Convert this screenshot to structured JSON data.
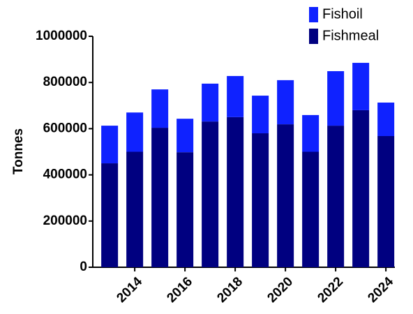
{
  "chart_data": {
    "type": "stacked_bar",
    "x": [
      2013,
      2014,
      2015,
      2016,
      2017,
      2018,
      2019,
      2020,
      2021,
      2022,
      2023,
      2024
    ],
    "xlim": [
      2012.33,
      2024.33
    ],
    "xticks": [
      2014,
      2016,
      2018,
      2020,
      2022,
      2024
    ],
    "ylabel": "Tonnes",
    "ylim": [
      0,
      1000000
    ],
    "yticks": [
      0,
      200000,
      400000,
      600000,
      800000,
      1000000
    ],
    "grid": false,
    "legend": "top-right",
    "series": [
      {
        "name": "Fishmeal",
        "color": "#000080",
        "values": [
          450000,
          500000,
          604000,
          498000,
          631000,
          650000,
          580000,
          619000,
          500000,
          613000,
          680000,
          568000
        ]
      },
      {
        "name": "Fishoil",
        "color": "#0f22ff",
        "values": [
          163000,
          170000,
          166000,
          145000,
          164000,
          178000,
          163000,
          191000,
          159000,
          236000,
          205000,
          145000
        ]
      }
    ]
  }
}
